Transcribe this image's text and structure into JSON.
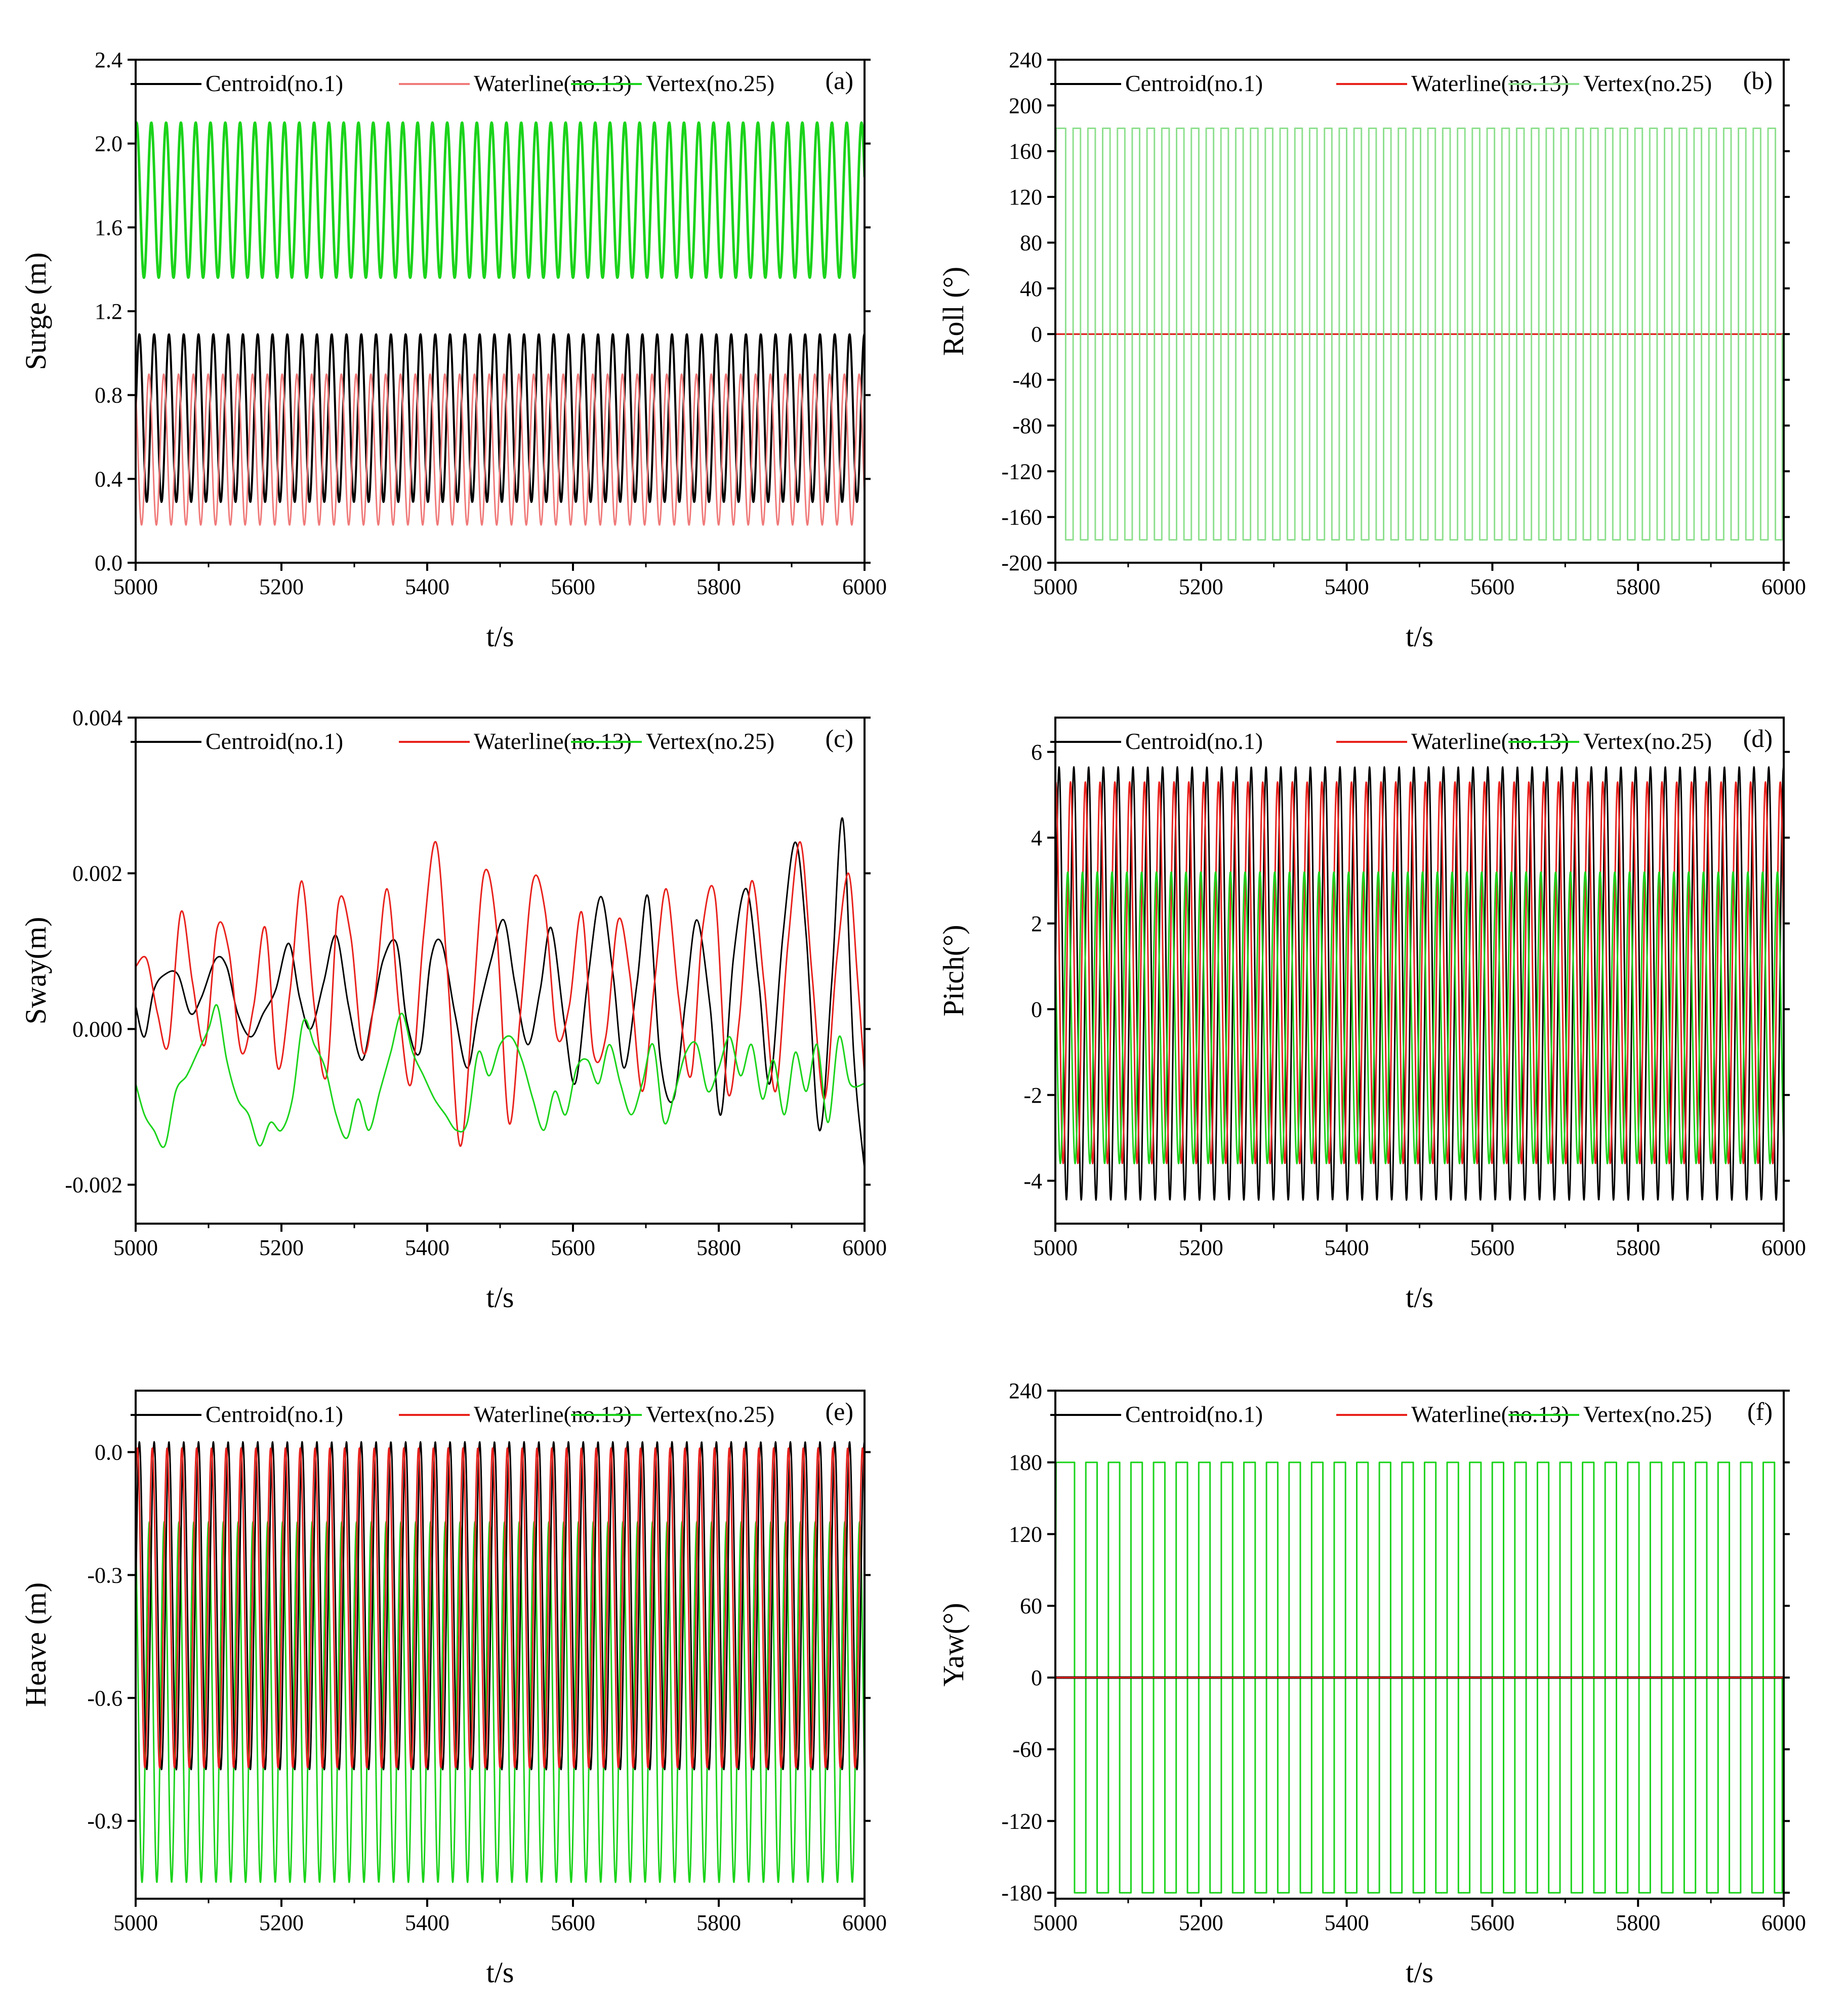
{
  "figure": {
    "colors": {
      "centroid": "#000000",
      "waterline": "#e8211c",
      "vertex": "#1bd31b",
      "axis": "#000000"
    }
  },
  "chart_data": [
    {
      "id": "a",
      "type": "line",
      "tag": "(a)",
      "xlabel": "t/s",
      "ylabel": "Surge (m)",
      "xlim": [
        5000,
        6000
      ],
      "ylim": [
        0,
        2.4
      ],
      "xticks": [
        5000,
        5200,
        5400,
        5600,
        5800,
        6000
      ],
      "xtick_labels": [
        "5000",
        "5200",
        "5400",
        "5600",
        "5800",
        "6000"
      ],
      "yticks": [
        0,
        0.4,
        0.8,
        1.2,
        1.6,
        2.0,
        2.4
      ],
      "ytick_labels": [
        "0.0",
        "0.4",
        "0.8",
        "1.2",
        "1.6",
        "2.0",
        "2.4"
      ],
      "legend": [
        "Centroid(no.1)",
        "Waterline(no.13)",
        "Vertex(no.25)"
      ],
      "series": [
        {
          "name": "Centroid(no.1)",
          "color": "#000000",
          "kind": "sine",
          "mean": 0.69,
          "amp": 0.4,
          "period": 20.3,
          "phase": 0.0,
          "stroke": 4
        },
        {
          "name": "Waterline(no.13)",
          "color": "#f07a7a",
          "kind": "sine",
          "mean": 0.54,
          "amp": 0.36,
          "period": 20.3,
          "phase": 2.2,
          "stroke": 3
        },
        {
          "name": "Vertex(no.25)",
          "color": "#1bd31b",
          "kind": "sine",
          "mean": 1.73,
          "amp": 0.37,
          "period": 20.3,
          "phase": 1.2,
          "stroke": 5
        }
      ]
    },
    {
      "id": "b",
      "type": "line",
      "tag": "(b)",
      "xlabel": "t/s",
      "ylabel": "Roll (°)",
      "xlim": [
        5000,
        6000
      ],
      "ylim": [
        -200,
        240
      ],
      "xticks": [
        5000,
        5200,
        5400,
        5600,
        5800,
        6000
      ],
      "xtick_labels": [
        "5000",
        "5200",
        "5400",
        "5600",
        "5800",
        "6000"
      ],
      "yticks": [
        -200,
        -160,
        -120,
        -80,
        -40,
        0,
        40,
        80,
        120,
        160,
        200,
        240
      ],
      "ytick_labels": [
        "-200",
        "-160",
        "-120",
        "-80",
        "-40",
        "0",
        "40",
        "80",
        "120",
        "160",
        "200",
        "240"
      ],
      "legend": [
        "Centroid(no.1)",
        "Waterline(no.13)",
        "Vertex(no.25)"
      ],
      "series": [
        {
          "name": "Centroid(no.1)",
          "color": "#000000",
          "kind": "const",
          "value": 0,
          "stroke": 3
        },
        {
          "name": "Waterline(no.13)",
          "color": "#e8211c",
          "kind": "const",
          "value": 0,
          "stroke": 3
        },
        {
          "name": "Vertex(no.25)",
          "color": "#8ee08e",
          "kind": "square",
          "high": 180,
          "low": -180,
          "period": 20.3,
          "phase": 0.2,
          "stroke": 3
        }
      ]
    },
    {
      "id": "c",
      "type": "line",
      "tag": "(c)",
      "xlabel": "t/s",
      "ylabel": "Sway(m)",
      "xlim": [
        5000,
        6000
      ],
      "ylim": [
        -0.0025,
        0.004
      ],
      "xticks": [
        5000,
        5200,
        5400,
        5600,
        5800,
        6000
      ],
      "xtick_labels": [
        "5000",
        "5200",
        "5400",
        "5600",
        "5800",
        "6000"
      ],
      "yticks": [
        -0.002,
        0.0,
        0.002,
        0.004
      ],
      "ytick_labels": [
        "-0.002",
        "0.000",
        "0.002",
        "0.004"
      ],
      "legend": [
        "Centroid(no.1)",
        "Waterline(no.13)",
        "Vertex(no.25)"
      ],
      "series": [
        {
          "name": "Centroid(no.1)",
          "color": "#000000",
          "kind": "points",
          "stroke": 3,
          "x": [
            5000,
            5012,
            5025,
            5040,
            5058,
            5075,
            5090,
            5110,
            5125,
            5140,
            5158,
            5175,
            5192,
            5210,
            5225,
            5240,
            5258,
            5275,
            5292,
            5310,
            5325,
            5340,
            5358,
            5372,
            5390,
            5405,
            5420,
            5438,
            5455,
            5470,
            5488,
            5505,
            5520,
            5538,
            5555,
            5570,
            5588,
            5603,
            5620,
            5638,
            5655,
            5670,
            5688,
            5703,
            5720,
            5738,
            5755,
            5770,
            5788,
            5803,
            5820,
            5838,
            5855,
            5870,
            5888,
            5905,
            5920,
            5938,
            5955,
            5970,
            5985,
            6000
          ],
          "y": [
            0.0003,
            -0.0001,
            0.0005,
            0.0007,
            0.0007,
            0.0002,
            0.0004,
            0.0009,
            0.0008,
            0.0002,
            -0.0001,
            0.0002,
            0.0005,
            0.0011,
            0.0004,
            0.0,
            0.0006,
            0.0012,
            0.0003,
            -0.0004,
            0.0002,
            0.0009,
            0.0011,
            0.0001,
            -0.0003,
            0.0009,
            0.0011,
            0.0002,
            -0.0005,
            0.0002,
            0.0009,
            0.0014,
            0.0006,
            -0.0002,
            0.0005,
            0.0013,
            0.0001,
            -0.0007,
            0.0006,
            0.0017,
            0.0007,
            -0.0005,
            0.0006,
            0.0017,
            -0.0004,
            -0.0009,
            0.0004,
            0.0014,
            0.0003,
            -0.0011,
            0.0009,
            0.0018,
            0.0006,
            -0.0007,
            0.0012,
            0.0024,
            0.0012,
            -0.0013,
            0.0006,
            0.0027,
            -0.0003,
            -0.0018
          ]
        },
        {
          "name": "Waterline(no.13)",
          "color": "#e8211c",
          "kind": "points",
          "stroke": 3,
          "x": [
            5000,
            5015,
            5030,
            5045,
            5062,
            5078,
            5095,
            5112,
            5128,
            5145,
            5162,
            5178,
            5195,
            5212,
            5228,
            5245,
            5262,
            5278,
            5295,
            5312,
            5328,
            5345,
            5362,
            5378,
            5395,
            5412,
            5428,
            5445,
            5462,
            5478,
            5495,
            5512,
            5528,
            5545,
            5562,
            5578,
            5595,
            5612,
            5628,
            5645,
            5662,
            5678,
            5695,
            5712,
            5728,
            5745,
            5762,
            5778,
            5795,
            5812,
            5828,
            5845,
            5862,
            5878,
            5895,
            5912,
            5928,
            5945,
            5962,
            5978,
            5990,
            6000
          ],
          "y": [
            0.0008,
            0.0009,
            0.0002,
            -0.0002,
            0.0015,
            0.0006,
            -0.0002,
            0.0013,
            0.001,
            -0.0003,
            0.0003,
            0.0013,
            -0.0005,
            0.0005,
            0.0019,
            0.0003,
            -0.0006,
            0.0016,
            0.0012,
            -0.0003,
            0.0004,
            0.0018,
            0.0002,
            -0.0007,
            0.0012,
            0.0024,
            0.0007,
            -0.0015,
            0.0002,
            0.002,
            0.0013,
            -0.0012,
            0.0002,
            0.0019,
            0.0015,
            -0.0001,
            0.0003,
            0.0015,
            -0.0003,
            -0.0001,
            0.0014,
            0.0007,
            -0.0008,
            0.0006,
            0.0018,
            0.0004,
            -0.0006,
            0.0013,
            0.0017,
            -0.0008,
            0.0001,
            0.0019,
            0.0006,
            -0.0008,
            0.0011,
            0.0024,
            0.0007,
            -0.0009,
            0.0009,
            0.002,
            0.0007,
            -0.0006
          ]
        },
        {
          "name": "Vertex(no.25)",
          "color": "#1bd31b",
          "kind": "points",
          "stroke": 3,
          "x": [
            5000,
            5012,
            5025,
            5040,
            5055,
            5070,
            5085,
            5100,
            5112,
            5125,
            5140,
            5155,
            5170,
            5185,
            5200,
            5215,
            5230,
            5245,
            5260,
            5275,
            5290,
            5305,
            5320,
            5335,
            5350,
            5365,
            5380,
            5395,
            5410,
            5425,
            5440,
            5455,
            5470,
            5485,
            5500,
            5515,
            5530,
            5545,
            5560,
            5575,
            5590,
            5605,
            5620,
            5635,
            5650,
            5665,
            5680,
            5695,
            5710,
            5725,
            5740,
            5755,
            5770,
            5785,
            5800,
            5815,
            5830,
            5845,
            5860,
            5875,
            5890,
            5905,
            5920,
            5935,
            5950,
            5965,
            5980,
            6000
          ],
          "y": [
            -0.0007,
            -0.0011,
            -0.0013,
            -0.0015,
            -0.0008,
            -0.0006,
            -0.0003,
            0.0,
            0.0003,
            -0.0004,
            -0.0009,
            -0.0011,
            -0.0015,
            -0.0012,
            -0.0013,
            -0.0009,
            0.0001,
            -0.0002,
            -0.0005,
            -0.0011,
            -0.0014,
            -0.0009,
            -0.0013,
            -0.0008,
            -0.0003,
            0.0002,
            -0.0003,
            -0.0006,
            -0.0009,
            -0.0011,
            -0.0013,
            -0.0012,
            -0.0003,
            -0.0006,
            -0.0002,
            -0.0001,
            -0.0004,
            -0.0009,
            -0.0013,
            -0.0008,
            -0.0011,
            -0.0005,
            -0.0004,
            -0.0007,
            -0.0002,
            -0.0007,
            -0.0011,
            -0.0007,
            -0.0002,
            -0.0012,
            -0.0008,
            -0.0003,
            -0.0002,
            -0.0008,
            -0.0005,
            -0.0001,
            -0.0006,
            -0.0002,
            -0.0009,
            -0.0004,
            -0.0011,
            -0.0003,
            -0.0008,
            -0.0002,
            -0.0012,
            -0.0001,
            -0.0007,
            -0.0007
          ]
        }
      ]
    },
    {
      "id": "d",
      "type": "line",
      "tag": "(d)",
      "xlabel": "t/s",
      "ylabel": "Pitch(°)",
      "xlim": [
        5000,
        6000
      ],
      "ylim": [
        -5,
        6.8
      ],
      "xticks": [
        5000,
        5200,
        5400,
        5600,
        5800,
        6000
      ],
      "xtick_labels": [
        "5000",
        "5200",
        "5400",
        "5600",
        "5800",
        "6000"
      ],
      "yticks": [
        -4,
        -2,
        0,
        2,
        4,
        6
      ],
      "ytick_labels": [
        "-4",
        "-2",
        "0",
        "2",
        "4",
        "6"
      ],
      "legend": [
        "Centroid(no.1)",
        "Waterline(no.13)",
        "Vertex(no.25)"
      ],
      "series": [
        {
          "name": "Centroid(no.1)",
          "color": "#000000",
          "kind": "sine",
          "mean": 0.6,
          "amp": 5.05,
          "period": 20.3,
          "phase": 0.0,
          "stroke": 3
        },
        {
          "name": "Waterline(no.13)",
          "color": "#e8211c",
          "kind": "sine",
          "mean": 0.85,
          "amp": 4.45,
          "period": 20.3,
          "phase": 1.4,
          "stroke": 3
        },
        {
          "name": "Vertex(no.25)",
          "color": "#1bd31b",
          "kind": "sine",
          "mean": -0.2,
          "amp": 3.4,
          "period": 20.3,
          "phase": 2.6,
          "stroke": 3
        }
      ]
    },
    {
      "id": "e",
      "type": "line",
      "tag": "(e)",
      "xlabel": "t/s",
      "ylabel": "Heave (m)",
      "xlim": [
        5000,
        6000
      ],
      "ylim": [
        -1.09,
        0.15
      ],
      "xticks": [
        5000,
        5200,
        5400,
        5600,
        5800,
        6000
      ],
      "xtick_labels": [
        "5000",
        "5200",
        "5400",
        "5600",
        "5800",
        "6000"
      ],
      "yticks": [
        -0.9,
        -0.6,
        -0.3,
        0.0
      ],
      "ytick_labels": [
        "-0.9",
        "-0.6",
        "-0.3",
        "0.0"
      ],
      "legend": [
        "Centroid(no.1)",
        "Waterline(no.13)",
        "Vertex(no.25)"
      ],
      "series": [
        {
          "name": "Vertex(no.25)",
          "color": "#1bd31b",
          "kind": "sine",
          "mean": -0.61,
          "amp": 0.44,
          "period": 20.3,
          "phase": 2.0,
          "stroke": 3
        },
        {
          "name": "Centroid(no.1)",
          "color": "#000000",
          "kind": "sine",
          "mean": -0.375,
          "amp": 0.4,
          "period": 20.3,
          "phase": 0.0,
          "stroke": 3
        },
        {
          "name": "Waterline(no.13)",
          "color": "#e8211c",
          "kind": "sine",
          "mean": -0.38,
          "amp": 0.39,
          "period": 20.3,
          "phase": 0.8,
          "stroke": 3
        }
      ]
    },
    {
      "id": "f",
      "type": "line",
      "tag": "(f)",
      "xlabel": "t/s",
      "ylabel": "Yaw(°)",
      "xlim": [
        5000,
        6000
      ],
      "ylim": [
        -185,
        240
      ],
      "xticks": [
        5000,
        5200,
        5400,
        5600,
        5800,
        6000
      ],
      "xtick_labels": [
        "5000",
        "5200",
        "5400",
        "5600",
        "5800",
        "6000"
      ],
      "yticks": [
        -180,
        -120,
        -60,
        0,
        60,
        120,
        180,
        240
      ],
      "ytick_labels": [
        "-180",
        "-120",
        "-60",
        "0",
        "60",
        "120",
        "180",
        "240"
      ],
      "legend": [
        "Centroid(no.1)",
        "Waterline(no.13)",
        "Vertex(no.25)"
      ],
      "series": [
        {
          "name": "Vertex(no.25)",
          "color": "#1bd31b",
          "kind": "square",
          "high": 180,
          "low": -180,
          "period": 31.0,
          "phase": 0.35,
          "stroke": 3
        },
        {
          "name": "Centroid(no.1)",
          "color": "#000000",
          "kind": "const",
          "value": 0,
          "stroke": 5
        },
        {
          "name": "Waterline(no.13)",
          "color": "#e8211c",
          "kind": "const",
          "value": 0,
          "stroke": 3
        }
      ]
    }
  ]
}
